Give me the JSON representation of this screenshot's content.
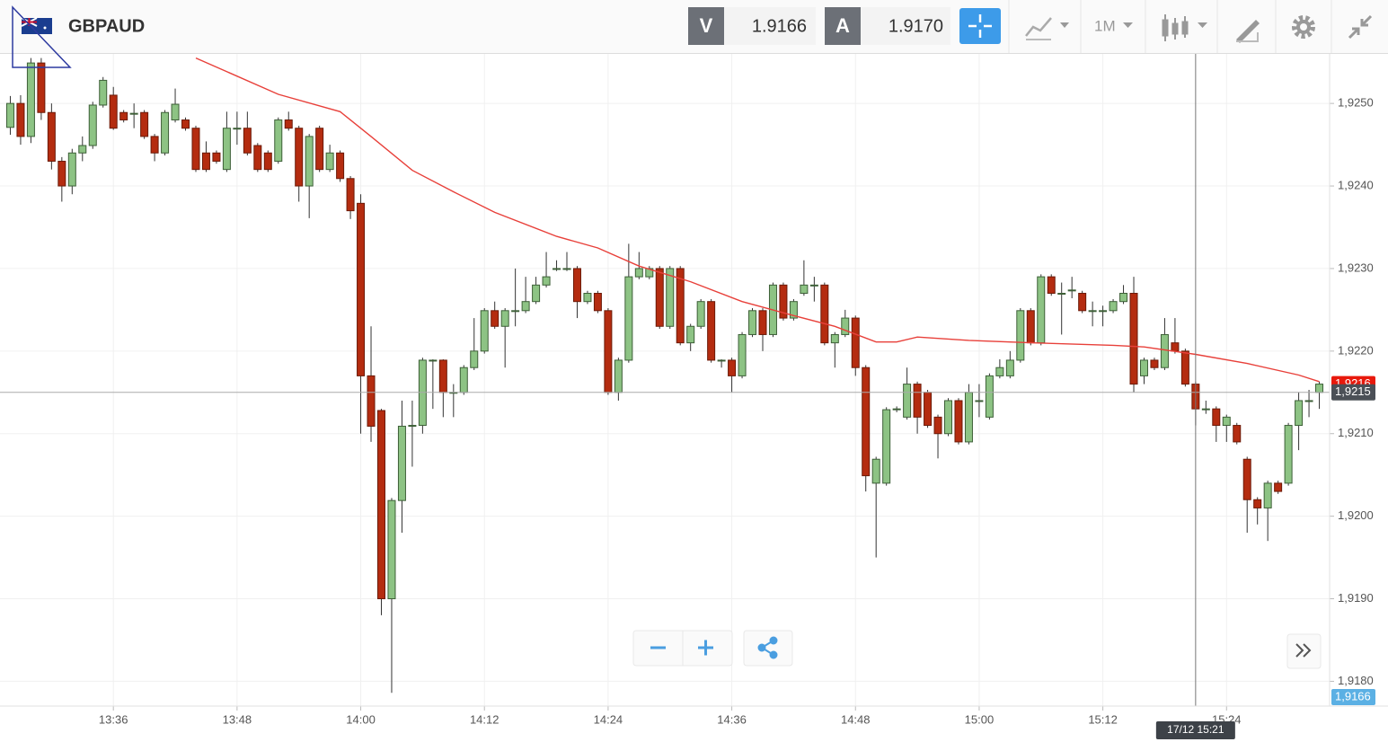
{
  "header": {
    "symbol": "GBPAUD",
    "sell_label": "V",
    "sell_price": "1.9166",
    "buy_label": "A",
    "buy_price": "1.9170",
    "timeframe": "1M"
  },
  "chart_data": {
    "type": "candlestick",
    "x": [
      "13:26",
      "13:27",
      "13:28",
      "13:29",
      "13:30",
      "13:31",
      "13:32",
      "13:33",
      "13:34",
      "13:35",
      "13:36",
      "13:37",
      "13:38",
      "13:39",
      "13:40",
      "13:41",
      "13:42",
      "13:43",
      "13:44",
      "13:45",
      "13:46",
      "13:47",
      "13:48",
      "13:49",
      "13:50",
      "13:51",
      "13:52",
      "13:53",
      "13:54",
      "13:55",
      "13:56",
      "13:57",
      "13:58",
      "13:59",
      "14:00",
      "14:01",
      "14:02",
      "14:03",
      "14:04",
      "14:05",
      "14:06",
      "14:07",
      "14:08",
      "14:09",
      "14:10",
      "14:11",
      "14:12",
      "14:13",
      "14:14",
      "14:15",
      "14:16",
      "14:17",
      "14:18",
      "14:19",
      "14:20",
      "14:21",
      "14:22",
      "14:23",
      "14:24",
      "14:25",
      "14:26",
      "14:27",
      "14:28",
      "14:29",
      "14:30",
      "14:31",
      "14:32",
      "14:33",
      "14:34",
      "14:35",
      "14:36",
      "14:37",
      "14:38",
      "14:39",
      "14:40",
      "14:41",
      "14:42",
      "14:43",
      "14:44",
      "14:45",
      "14:46",
      "14:47",
      "14:48",
      "14:49",
      "14:50",
      "14:51",
      "14:52",
      "14:53",
      "14:54",
      "14:55",
      "14:56",
      "14:57",
      "14:58",
      "14:59",
      "15:00",
      "15:01",
      "15:02",
      "15:03",
      "15:04",
      "15:05",
      "15:06",
      "15:07",
      "15:08",
      "15:09",
      "15:10",
      "15:11",
      "15:12",
      "15:13",
      "15:14",
      "15:15",
      "15:16",
      "15:17",
      "15:18",
      "15:19",
      "15:20",
      "15:21",
      "15:22",
      "15:23",
      "15:24",
      "15:25",
      "15:26",
      "15:27",
      "15:28",
      "15:29",
      "15:30",
      "15:31",
      "15:32",
      "15:33"
    ],
    "open": [
      1.92471,
      1.925,
      1.9246,
      1.92549,
      1.92489,
      1.9243,
      1.924,
      1.9244,
      1.92449,
      1.92498,
      1.9251,
      1.92489,
      1.92488,
      1.92489,
      1.9246,
      1.9244,
      1.9248,
      1.9248,
      1.9247,
      1.9244,
      1.9244,
      1.9242,
      1.9247,
      1.9247,
      1.92449,
      1.9244,
      1.9243,
      1.9248,
      1.9247,
      1.924,
      1.9247,
      1.9242,
      1.9244,
      1.92409,
      1.92379,
      1.9217,
      1.92128,
      1.919,
      1.92019,
      1.9211,
      1.9211,
      1.92189,
      1.92189,
      1.9215,
      1.9215,
      1.9218,
      1.922,
      1.92249,
      1.9223,
      1.92249,
      1.92249,
      1.9226,
      1.9228,
      1.923,
      1.923,
      1.923,
      1.9226,
      1.9227,
      1.92249,
      1.9215,
      1.92189,
      1.9229,
      1.9229,
      1.923,
      1.9223,
      1.923,
      1.9221,
      1.9223,
      1.9226,
      1.92189,
      1.92189,
      1.9217,
      1.9222,
      1.92249,
      1.9222,
      1.9228,
      1.9224,
      1.9227,
      1.9228,
      1.9228,
      1.9221,
      1.9222,
      1.9224,
      1.9218,
      1.9204,
      1.9204,
      1.92129,
      1.9212,
      1.9216,
      1.9215,
      1.9212,
      1.921,
      1.9214,
      1.9209,
      1.9214,
      1.9212,
      1.9217,
      1.9217,
      1.92189,
      1.92249,
      1.9221,
      1.9229,
      1.9227,
      1.92274,
      1.9227,
      1.92249,
      1.92249,
      1.92249,
      1.9226,
      1.9227,
      1.9217,
      1.92189,
      1.9218,
      1.9221,
      1.922,
      1.9216,
      1.9213,
      1.9213,
      1.9211,
      1.9211,
      1.92069,
      1.9202,
      1.9201,
      1.9204,
      1.9204,
      1.9211,
      1.9214,
      1.9215
    ],
    "high": [
      1.92509,
      1.9251,
      1.92555,
      1.92555,
      1.925,
      1.92435,
      1.92445,
      1.9246,
      1.92502,
      1.92532,
      1.9252,
      1.92492,
      1.925,
      1.92492,
      1.92463,
      1.92492,
      1.92518,
      1.92483,
      1.92473,
      1.92454,
      1.92443,
      1.9249,
      1.9249,
      1.9249,
      1.92452,
      1.92443,
      1.92483,
      1.9249,
      1.92473,
      1.92463,
      1.92473,
      1.9245,
      1.92443,
      1.92412,
      1.9239,
      1.9223,
      1.9213,
      1.92022,
      1.9214,
      1.9214,
      1.92192,
      1.9219,
      1.9219,
      1.9216,
      1.92183,
      1.9224,
      1.92252,
      1.9226,
      1.92252,
      1.923,
      1.9229,
      1.9229,
      1.9232,
      1.9231,
      1.9232,
      1.92303,
      1.92273,
      1.92273,
      1.92252,
      1.92192,
      1.9233,
      1.9232,
      1.92303,
      1.92303,
      1.92303,
      1.92303,
      1.92233,
      1.92263,
      1.92263,
      1.9219,
      1.92192,
      1.92223,
      1.92252,
      1.92252,
      1.92283,
      1.92283,
      1.92263,
      1.9231,
      1.9229,
      1.92283,
      1.92223,
      1.9225,
      1.92243,
      1.92183,
      1.92072,
      1.92132,
      1.92133,
      1.9218,
      1.92163,
      1.92153,
      1.92123,
      1.92143,
      1.92143,
      1.9216,
      1.9216,
      1.92173,
      1.9219,
      1.922,
      1.92252,
      1.92252,
      1.92293,
      1.92293,
      1.92283,
      1.9229,
      1.92273,
      1.9226,
      1.92255,
      1.92263,
      1.9228,
      1.9229,
      1.92192,
      1.92192,
      1.9224,
      1.9224,
      1.92203,
      1.92163,
      1.9214,
      1.92133,
      1.92123,
      1.92113,
      1.92072,
      1.92023,
      1.92043,
      1.92043,
      1.92113,
      1.9215,
      1.92153,
      1.92163
    ],
    "low": [
      1.92462,
      1.9245,
      1.92452,
      1.9248,
      1.9242,
      1.92381,
      1.9239,
      1.9243,
      1.92445,
      1.92495,
      1.92468,
      1.92477,
      1.9247,
      1.92457,
      1.9243,
      1.92437,
      1.92477,
      1.92467,
      1.92417,
      1.92417,
      1.92427,
      1.92417,
      1.9245,
      1.92437,
      1.92417,
      1.92417,
      1.92427,
      1.92467,
      1.92381,
      1.92361,
      1.92417,
      1.92417,
      1.92405,
      1.9236,
      1.921,
      1.9209,
      1.9188,
      1.91786,
      1.9198,
      1.9206,
      1.921,
      1.9213,
      1.9212,
      1.9212,
      1.92147,
      1.92177,
      1.92197,
      1.92227,
      1.9218,
      1.9223,
      1.92246,
      1.92257,
      1.92277,
      1.92297,
      1.92297,
      1.9224,
      1.92257,
      1.92246,
      1.92147,
      1.9214,
      1.92186,
      1.92287,
      1.92287,
      1.92227,
      1.92227,
      1.92207,
      1.922,
      1.92227,
      1.92186,
      1.9218,
      1.9215,
      1.92167,
      1.92217,
      1.922,
      1.92217,
      1.92237,
      1.92237,
      1.92267,
      1.9226,
      1.92207,
      1.9218,
      1.92217,
      1.9217,
      1.9203,
      1.9195,
      1.92037,
      1.92126,
      1.92117,
      1.921,
      1.92107,
      1.9207,
      1.92097,
      1.92087,
      1.92087,
      1.9212,
      1.92117,
      1.92167,
      1.92167,
      1.92186,
      1.92207,
      1.92207,
      1.92267,
      1.9222,
      1.92264,
      1.92246,
      1.9223,
      1.9223,
      1.92246,
      1.92257,
      1.9215,
      1.9216,
      1.92177,
      1.92177,
      1.92197,
      1.92157,
      1.9211,
      1.92124,
      1.9209,
      1.9209,
      1.92087,
      1.9198,
      1.9199,
      1.9197,
      1.92027,
      1.92037,
      1.9208,
      1.9212,
      1.9213
    ],
    "close": [
      1.925,
      1.9246,
      1.92549,
      1.92489,
      1.9243,
      1.924,
      1.9244,
      1.92449,
      1.92498,
      1.92528,
      1.9247,
      1.9248,
      1.92488,
      1.9246,
      1.9244,
      1.92489,
      1.92499,
      1.9247,
      1.9242,
      1.9242,
      1.9243,
      1.9247,
      1.9247,
      1.9244,
      1.9242,
      1.9242,
      1.9248,
      1.9247,
      1.924,
      1.9246,
      1.9242,
      1.9244,
      1.92409,
      1.9237,
      1.9217,
      1.92109,
      1.919,
      1.92019,
      1.92109,
      1.9211,
      1.92189,
      1.92189,
      1.9215,
      1.9215,
      1.9218,
      1.922,
      1.92249,
      1.9223,
      1.92249,
      1.92249,
      1.9226,
      1.9228,
      1.9229,
      1.923,
      1.923,
      1.9226,
      1.9227,
      1.92249,
      1.9215,
      1.92189,
      1.9229,
      1.923,
      1.923,
      1.9223,
      1.923,
      1.9221,
      1.9223,
      1.9226,
      1.92189,
      1.92189,
      1.9217,
      1.9222,
      1.92249,
      1.9222,
      1.9228,
      1.9224,
      1.9226,
      1.9228,
      1.9228,
      1.9221,
      1.9222,
      1.9224,
      1.9218,
      1.92049,
      1.92069,
      1.92129,
      1.9213,
      1.9216,
      1.9212,
      1.9211,
      1.921,
      1.9214,
      1.9209,
      1.9215,
      1.9214,
      1.9217,
      1.9218,
      1.92189,
      1.92249,
      1.9221,
      1.9229,
      1.9227,
      1.9227,
      1.92274,
      1.92249,
      1.92249,
      1.92249,
      1.9226,
      1.9227,
      1.9216,
      1.92189,
      1.9218,
      1.9222,
      1.922,
      1.9216,
      1.9213,
      1.9213,
      1.9211,
      1.9212,
      1.9209,
      1.9202,
      1.9201,
      1.9204,
      1.9203,
      1.9211,
      1.9214,
      1.9214,
      1.9216
    ],
    "up_color": "#8dc384",
    "down_color": "#b42c10",
    "ma": {
      "color": "#e8403a",
      "x": [
        "13:44",
        "13:52",
        "13:58",
        "14:01",
        "14:05",
        "14:09",
        "14:13",
        "14:19",
        "14:23",
        "14:27",
        "14:32",
        "14:37",
        "14:42",
        "14:46",
        "14:50",
        "14:52",
        "14:54",
        "14:59",
        "15:05",
        "15:13",
        "15:16",
        "15:21",
        "15:26",
        "15:31",
        "15:33"
      ],
      "values": [
        1.92555,
        1.92511,
        1.9249,
        1.9246,
        1.92419,
        1.92393,
        1.92368,
        1.92339,
        1.92325,
        1.92303,
        1.92284,
        1.9226,
        1.92243,
        1.9223,
        1.92211,
        1.92211,
        1.92217,
        1.92213,
        1.9221,
        1.92207,
        1.92205,
        1.92196,
        1.92185,
        1.92171,
        1.92163
      ]
    },
    "xlim": [
      "13:25",
      "15:34"
    ],
    "xticks": [
      "13:36",
      "13:48",
      "14:00",
      "14:12",
      "14:24",
      "14:36",
      "14:48",
      "15:00",
      "15:12",
      "15:24"
    ],
    "ylim": [
      1.9177,
      1.9256
    ],
    "yticks": [
      {
        "value": 1.918,
        "label": "1,9180"
      },
      {
        "value": 1.919,
        "label": "1,9190"
      },
      {
        "value": 1.92,
        "label": "1,9200"
      },
      {
        "value": 1.921,
        "label": "1,9210"
      },
      {
        "value": 1.922,
        "label": "1,9220"
      },
      {
        "value": 1.923,
        "label": "1,9230"
      },
      {
        "value": 1.924,
        "label": "1,9240"
      },
      {
        "value": 1.925,
        "label": "1,9250"
      }
    ],
    "grid": true,
    "price_labels": [
      {
        "value": 1.9216,
        "label": "1,9216",
        "color": "#e8190c"
      },
      {
        "value": 1.9215,
        "label": "1,9215",
        "color": "#4b5057"
      },
      {
        "value": 1.9166,
        "label": "1,9166",
        "color": "#5bb0e4"
      }
    ],
    "crosshair": {
      "x": "15:21",
      "label": "17/12 15:21"
    }
  }
}
